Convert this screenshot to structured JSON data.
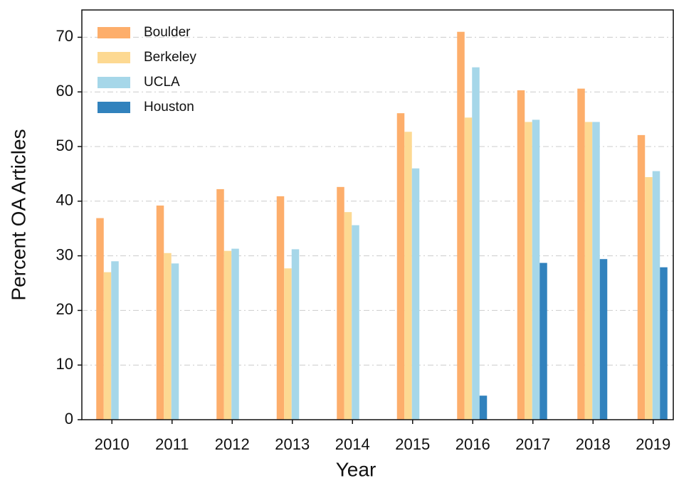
{
  "chart_data": {
    "type": "bar",
    "xlabel": "Year",
    "ylabel": "Percent OA Articles",
    "categories": [
      "2010",
      "2011",
      "2012",
      "2013",
      "2014",
      "2015",
      "2016",
      "2017",
      "2018",
      "2019"
    ],
    "series": [
      {
        "name": "Boulder",
        "color": "#fdae6b",
        "values": [
          36.9,
          39.2,
          42.2,
          40.9,
          42.6,
          56.1,
          71,
          60.3,
          60.6,
          52.1
        ]
      },
      {
        "name": "Berkeley",
        "color": "#fdd992",
        "values": [
          27,
          30.5,
          30.9,
          27.7,
          38,
          52.7,
          55.3,
          54.5,
          54.5,
          44.4
        ]
      },
      {
        "name": "UCLA",
        "color": "#a6d7e9",
        "values": [
          29,
          28.6,
          31.3,
          31.2,
          35.6,
          46,
          64.5,
          54.9,
          54.5,
          45.5
        ]
      },
      {
        "name": "Houston",
        "color": "#3182bd",
        "values": [
          0,
          0,
          0,
          0,
          0,
          0,
          4.4,
          28.7,
          29.4,
          27.9
        ]
      }
    ],
    "ylim": [
      0,
      75
    ],
    "yticks": [
      0,
      10,
      20,
      30,
      40,
      50,
      60,
      70
    ],
    "grid": true,
    "legend": "upper left"
  }
}
